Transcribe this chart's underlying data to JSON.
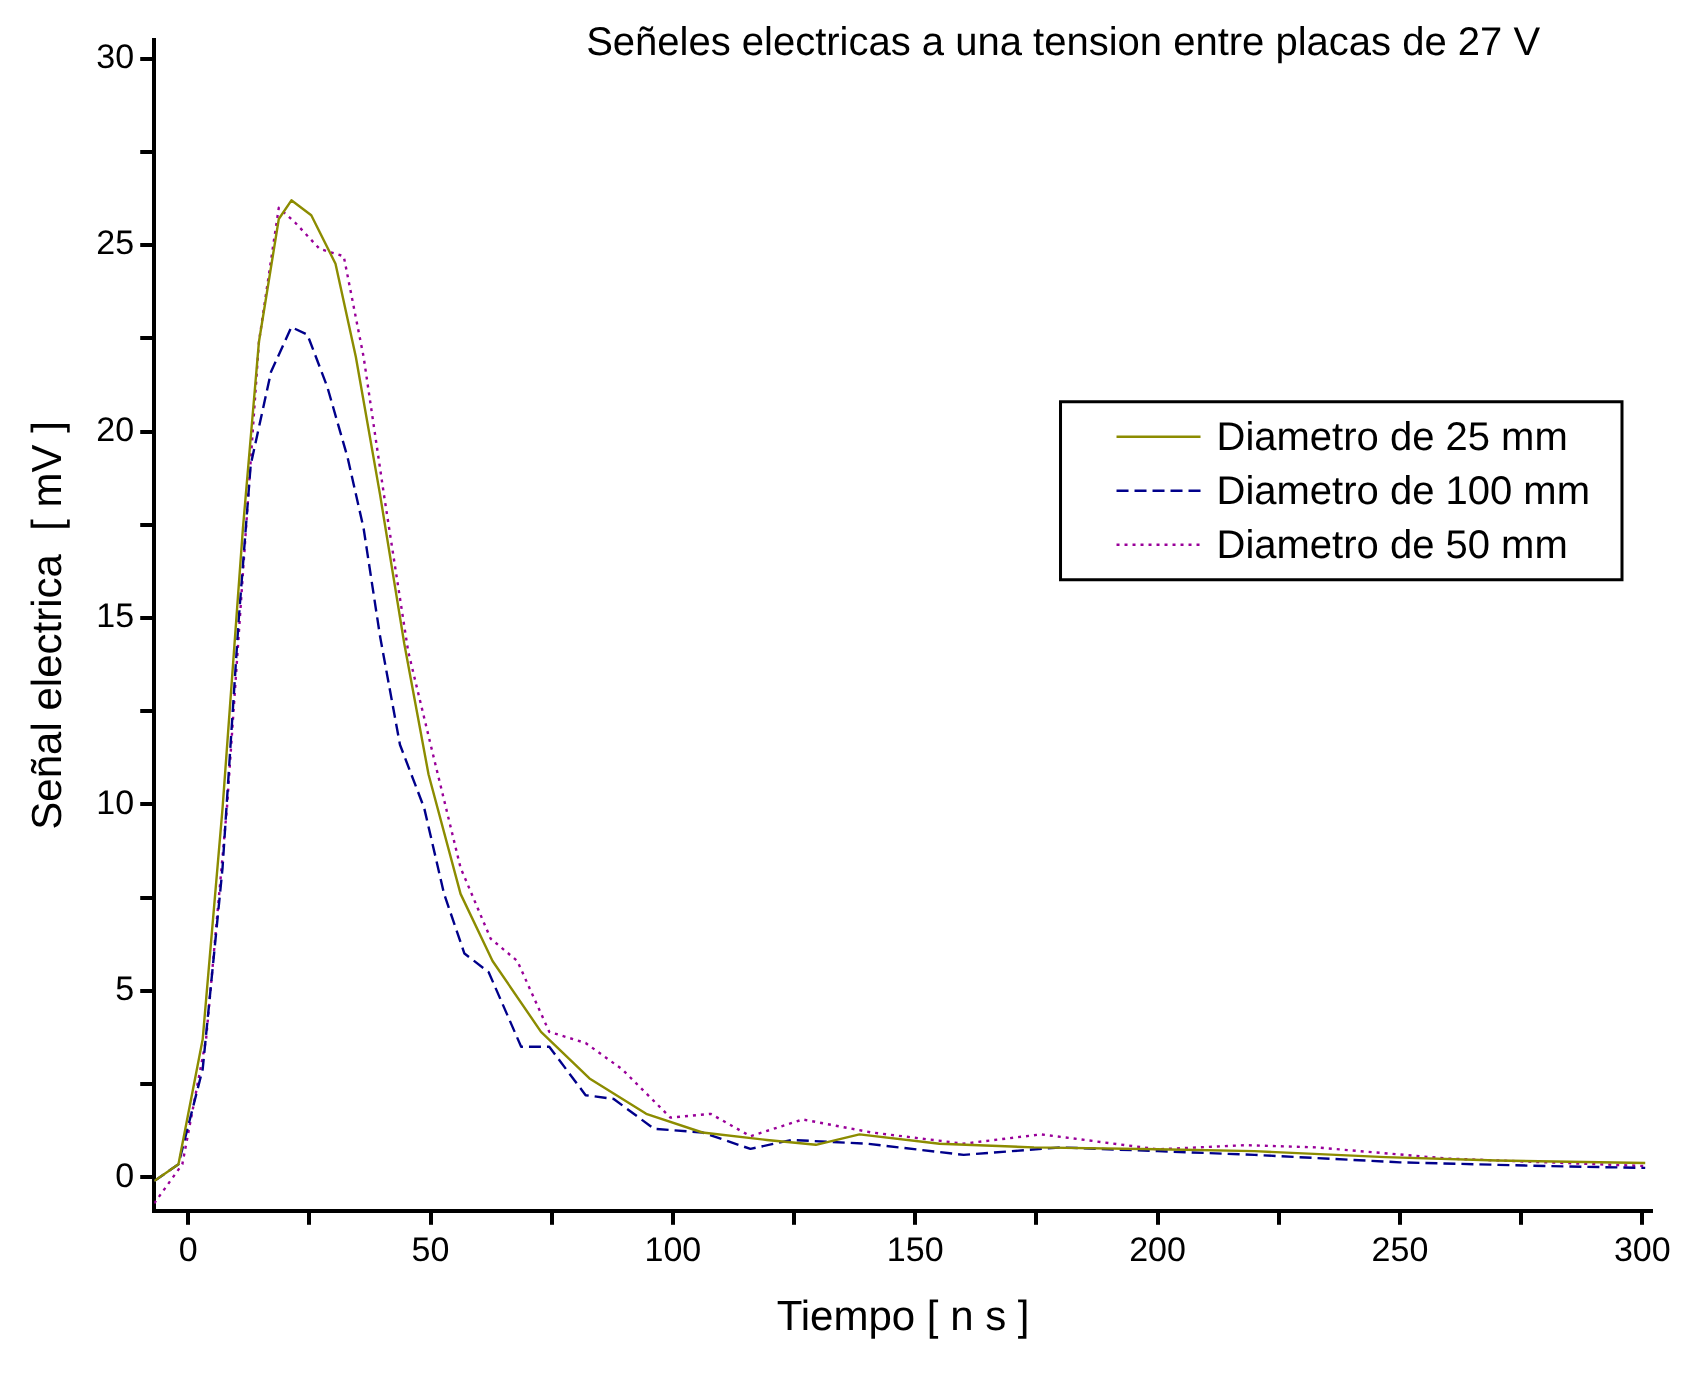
{
  "chart_data": {
    "type": "line",
    "title": "Señeles electricas a una tension entre placas de 27 V",
    "xlabel": "Tiempo [ n s ]",
    "ylabel": "Señal electrica  [ mV ]",
    "xlim": [
      -7,
      302
    ],
    "ylim": [
      -0.9,
      30.5
    ],
    "xticks": [
      0,
      {
        "value": 25,
        "label": null
      },
      50,
      {
        "value": 75,
        "label": null
      },
      100,
      {
        "value": 125,
        "label": null
      },
      150,
      {
        "value": 175,
        "label": null
      },
      200,
      {
        "value": 225,
        "label": null
      },
      250,
      {
        "value": 275,
        "label": null
      },
      300
    ],
    "yticks": [
      0,
      {
        "value": 2.5,
        "label": null
      },
      5,
      {
        "value": 7.5,
        "label": null
      },
      10,
      {
        "value": 12.5,
        "label": null
      },
      15,
      {
        "value": 17.5,
        "label": null
      },
      20,
      {
        "value": 22.5,
        "label": null
      },
      25,
      {
        "value": 27.5,
        "label": null
      },
      30
    ],
    "grid": false,
    "legend": "right",
    "marker": "none",
    "series": [
      {
        "name": "Diametro de 25 mm",
        "color": "#8c8c00",
        "line_style": "solid",
        "x": [
          -7,
          -2,
          3,
          7.1,
          11.3,
          14.6,
          18.7,
          21.3,
          25.4,
          30.4,
          34.6,
          39.6,
          44.6,
          49.6,
          56.2,
          62.8,
          72.8,
          82.8,
          94.5,
          106.1,
          119.4,
          129.5,
          138.5,
          155,
          174.5,
          200,
          220,
          247,
          270,
          300.6
        ],
        "values": [
          -0.1,
          0.35,
          3.7,
          9.9,
          17.4,
          22.4,
          25.7,
          26.2,
          25.8,
          24.5,
          22.0,
          18.3,
          14.3,
          10.8,
          7.6,
          5.8,
          3.9,
          2.65,
          1.7,
          1.2,
          1.0,
          0.87,
          1.15,
          0.9,
          0.8,
          0.75,
          0.7,
          0.54,
          0.45,
          0.38
        ]
      },
      {
        "name": "Diametro de 100 mm",
        "color": "#00008b",
        "line_style": "dashed",
        "x": [
          -7,
          -2,
          3,
          7.1,
          10.4,
          12.9,
          17.1,
          21.3,
          24.6,
          28.7,
          32.9,
          36.2,
          39.6,
          43.7,
          48.7,
          52.8,
          57,
          62,
          68.7,
          74.5,
          82,
          87.8,
          96.1,
          106.1,
          116,
          124.5,
          140,
          160,
          180,
          200,
          220,
          250,
          280,
          300.6
        ],
        "values": [
          -0.1,
          0.35,
          2.9,
          8.3,
          14.9,
          19.1,
          21.6,
          22.8,
          22.6,
          21.2,
          19.3,
          17.4,
          14.5,
          11.6,
          9.9,
          7.6,
          6.0,
          5.5,
          3.5,
          3.5,
          2.2,
          2.1,
          1.3,
          1.2,
          0.76,
          1.0,
          0.9,
          0.6,
          0.8,
          0.7,
          0.6,
          0.4,
          0.3,
          0.25
        ]
      },
      {
        "name": "Diametro de 50 mm",
        "color": "#990099",
        "line_style": "dotted",
        "x": [
          -7,
          -1.2,
          3.7,
          8,
          11.3,
          14.6,
          18.7,
          22.1,
          27.1,
          32.1,
          36.2,
          40.4,
          45.4,
          50.4,
          56.2,
          62.4,
          67.9,
          74.5,
          82,
          89.5,
          99.5,
          107.8,
          116,
          126.8,
          141,
          160,
          176,
          200,
          218,
          232.7,
          260,
          300.6
        ],
        "values": [
          -0.7,
          0.35,
          3.7,
          9.9,
          16.2,
          22.4,
          26.0,
          25.6,
          24.9,
          24.7,
          22.0,
          18.3,
          14.1,
          11.4,
          8.3,
          6.4,
          5.8,
          3.9,
          3.6,
          2.9,
          1.6,
          1.7,
          1.1,
          1.55,
          1.2,
          0.9,
          1.15,
          0.75,
          0.86,
          0.8,
          0.5,
          0.3
        ]
      }
    ]
  }
}
